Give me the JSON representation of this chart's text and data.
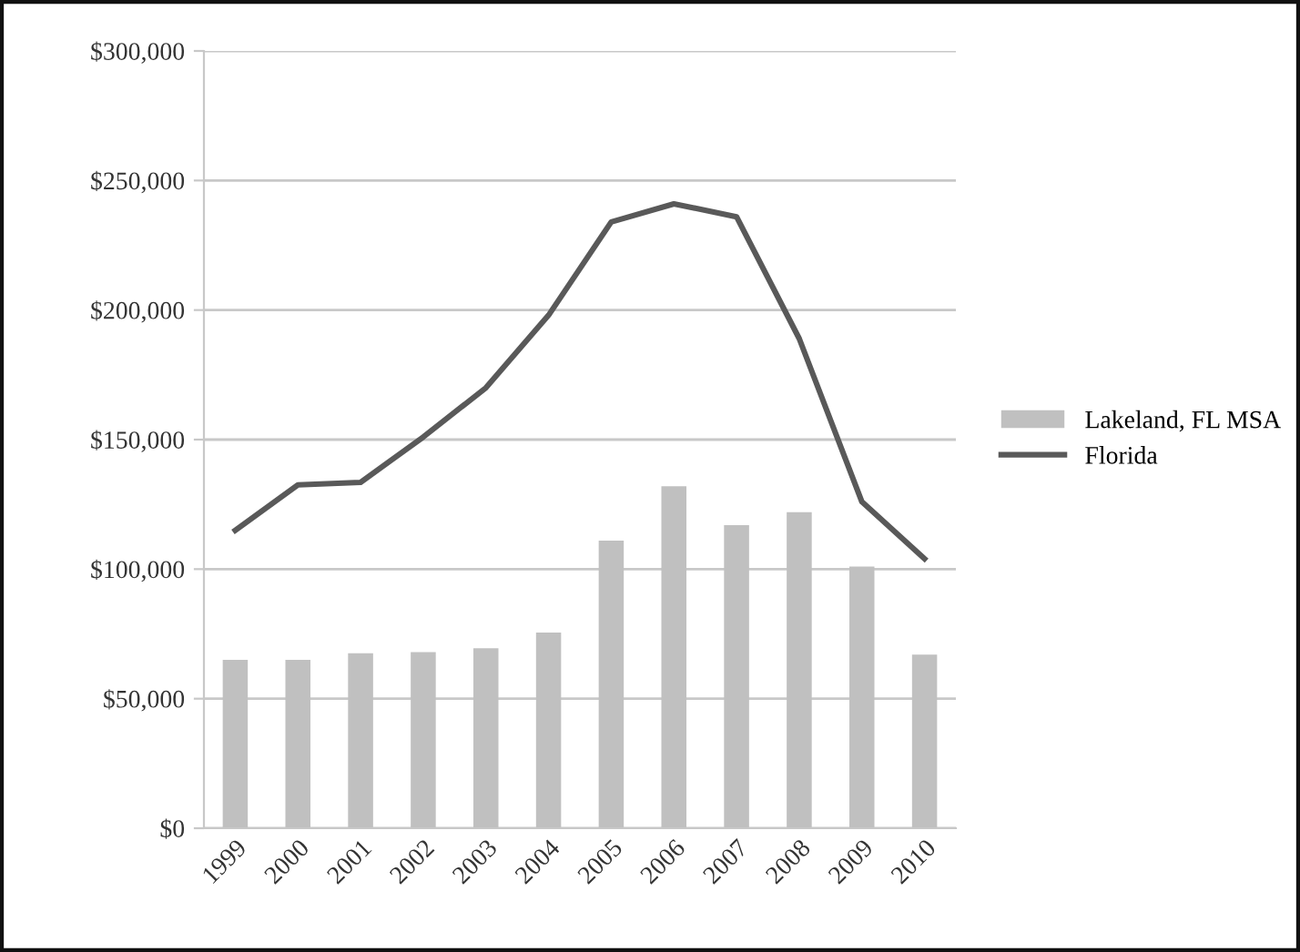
{
  "chart_data": {
    "type": "bar",
    "categories": [
      "1999",
      "2000",
      "2001",
      "2002",
      "2003",
      "2004",
      "2005",
      "2006",
      "2007",
      "2008",
      "2009",
      "2010"
    ],
    "series": [
      {
        "name": "Lakeland, FL MSA",
        "color": "#c0c0c0",
        "values": [
          65000,
          65000,
          67500,
          68000,
          69500,
          75500,
          111000,
          132000,
          117000,
          122000,
          101000,
          67000
        ]
      },
      {
        "name": "Florida",
        "type": "line",
        "color": "#595959",
        "values": [
          115000,
          132500,
          133500,
          151000,
          170000,
          198000,
          234000,
          241000,
          236000,
          189000,
          126000,
          104000
        ]
      }
    ],
    "ylim": [
      0,
      300000
    ],
    "yticks": [
      {
        "value": 0,
        "label": "$0"
      },
      {
        "value": 50000,
        "label": "$50,000"
      },
      {
        "value": 100000,
        "label": "$100,000"
      },
      {
        "value": 150000,
        "label": "$150,000"
      },
      {
        "value": 200000,
        "label": "$200,000"
      },
      {
        "value": 250000,
        "label": "$250,000"
      },
      {
        "value": 300000,
        "label": "$300,000"
      }
    ],
    "grid": "y",
    "legend": "right",
    "marker": "none",
    "line_style": "solid"
  }
}
